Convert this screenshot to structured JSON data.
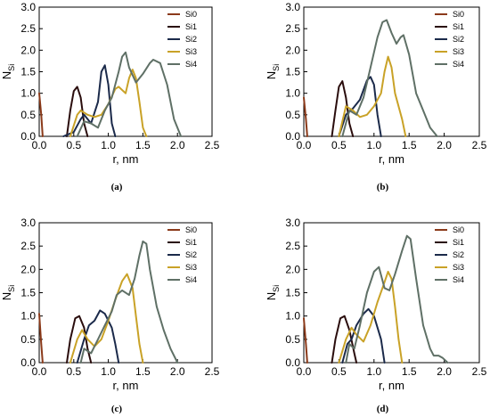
{
  "chart_data": [
    {
      "type": "line",
      "panel": "a",
      "caption": "(a)",
      "xlabel": "r, nm",
      "ylabel_main": "N",
      "ylabel_sub": "Si",
      "xlim": [
        0,
        2.5
      ],
      "ylim": [
        0,
        3.0
      ],
      "xticks": [
        "0.0",
        "0.5",
        "1.0",
        "1.5",
        "2.0",
        "2.5"
      ],
      "yticks": [
        "0.0",
        "0.5",
        "1.0",
        "1.5",
        "2.0",
        "2.5",
        "3.0"
      ],
      "legend_position": "top-right",
      "series": [
        {
          "name": "Si0",
          "color": "#8b3a1a",
          "points": [
            [
              0.0,
              1.0
            ],
            [
              0.03,
              0.5
            ],
            [
              0.05,
              0.0
            ]
          ]
        },
        {
          "name": "Si1",
          "color": "#2a0d0d",
          "points": [
            [
              0.4,
              0.0
            ],
            [
              0.45,
              0.6
            ],
            [
              0.5,
              1.05
            ],
            [
              0.55,
              1.15
            ],
            [
              0.6,
              0.9
            ],
            [
              0.65,
              0.3
            ],
            [
              0.7,
              0.0
            ]
          ]
        },
        {
          "name": "Si2",
          "color": "#1b2a4a",
          "points": [
            [
              0.35,
              0.0
            ],
            [
              0.5,
              0.1
            ],
            [
              0.6,
              0.4
            ],
            [
              0.65,
              0.5
            ],
            [
              0.75,
              0.3
            ],
            [
              0.85,
              0.8
            ],
            [
              0.9,
              1.5
            ],
            [
              0.95,
              1.65
            ],
            [
              1.0,
              1.2
            ],
            [
              1.05,
              0.3
            ],
            [
              1.1,
              0.0
            ]
          ]
        },
        {
          "name": "Si3",
          "color": "#c9a227",
          "points": [
            [
              0.45,
              0.0
            ],
            [
              0.55,
              0.5
            ],
            [
              0.6,
              0.6
            ],
            [
              0.7,
              0.5
            ],
            [
              0.8,
              0.45
            ],
            [
              0.9,
              0.5
            ],
            [
              1.0,
              0.75
            ],
            [
              1.1,
              1.1
            ],
            [
              1.15,
              1.15
            ],
            [
              1.25,
              1.0
            ],
            [
              1.3,
              1.35
            ],
            [
              1.35,
              1.55
            ],
            [
              1.4,
              1.35
            ],
            [
              1.45,
              0.8
            ],
            [
              1.5,
              0.2
            ],
            [
              1.55,
              0.0
            ]
          ]
        },
        {
          "name": "Si4",
          "color": "#5f7066",
          "points": [
            [
              0.55,
              0.0
            ],
            [
              0.65,
              0.35
            ],
            [
              0.75,
              0.3
            ],
            [
              0.85,
              0.2
            ],
            [
              0.95,
              0.6
            ],
            [
              1.05,
              0.9
            ],
            [
              1.15,
              1.5
            ],
            [
              1.2,
              1.85
            ],
            [
              1.25,
              1.95
            ],
            [
              1.3,
              1.6
            ],
            [
              1.4,
              1.25
            ],
            [
              1.5,
              1.45
            ],
            [
              1.6,
              1.7
            ],
            [
              1.65,
              1.78
            ],
            [
              1.75,
              1.7
            ],
            [
              1.85,
              1.2
            ],
            [
              1.95,
              0.4
            ],
            [
              2.05,
              0.0
            ]
          ]
        }
      ]
    },
    {
      "type": "line",
      "panel": "b",
      "caption": "(b)",
      "xlabel": "r, nm",
      "ylabel_main": "N",
      "ylabel_sub": "Si",
      "xlim": [
        0,
        2.5
      ],
      "ylim": [
        0,
        3.0
      ],
      "xticks": [
        "0.0",
        "0.5",
        "1.0",
        "1.5",
        "2.0",
        "2.5"
      ],
      "yticks": [
        "0.0",
        "0.5",
        "1.0",
        "1.5",
        "2.0",
        "2.5",
        "3.0"
      ],
      "legend_position": "top-right",
      "series": [
        {
          "name": "Si0",
          "color": "#8b3a1a",
          "points": [
            [
              0.0,
              0.9
            ],
            [
              0.03,
              0.4
            ],
            [
              0.05,
              0.0
            ]
          ]
        },
        {
          "name": "Si1",
          "color": "#2a0d0d",
          "points": [
            [
              0.4,
              0.0
            ],
            [
              0.45,
              0.6
            ],
            [
              0.5,
              1.15
            ],
            [
              0.55,
              1.28
            ],
            [
              0.6,
              0.9
            ],
            [
              0.65,
              0.3
            ],
            [
              0.7,
              0.0
            ]
          ]
        },
        {
          "name": "Si2",
          "color": "#1b2a4a",
          "points": [
            [
              0.5,
              0.0
            ],
            [
              0.6,
              0.5
            ],
            [
              0.7,
              0.65
            ],
            [
              0.8,
              0.85
            ],
            [
              0.9,
              1.3
            ],
            [
              0.95,
              1.38
            ],
            [
              1.0,
              1.2
            ],
            [
              1.05,
              0.5
            ],
            [
              1.1,
              0.0
            ]
          ]
        },
        {
          "name": "Si3",
          "color": "#c9a227",
          "points": [
            [
              0.5,
              0.0
            ],
            [
              0.6,
              0.7
            ],
            [
              0.7,
              0.6
            ],
            [
              0.8,
              0.45
            ],
            [
              0.9,
              0.5
            ],
            [
              1.0,
              0.7
            ],
            [
              1.1,
              1.0
            ],
            [
              1.15,
              1.5
            ],
            [
              1.2,
              1.85
            ],
            [
              1.25,
              1.6
            ],
            [
              1.3,
              1.0
            ],
            [
              1.4,
              0.4
            ],
            [
              1.45,
              0.0
            ]
          ]
        },
        {
          "name": "Si4",
          "color": "#5f7066",
          "points": [
            [
              0.55,
              0.0
            ],
            [
              0.65,
              0.6
            ],
            [
              0.75,
              0.5
            ],
            [
              0.85,
              0.9
            ],
            [
              0.95,
              1.6
            ],
            [
              1.05,
              2.3
            ],
            [
              1.12,
              2.65
            ],
            [
              1.18,
              2.7
            ],
            [
              1.25,
              2.4
            ],
            [
              1.32,
              2.15
            ],
            [
              1.38,
              2.3
            ],
            [
              1.42,
              2.35
            ],
            [
              1.5,
              1.9
            ],
            [
              1.6,
              1.0
            ],
            [
              1.7,
              0.6
            ],
            [
              1.8,
              0.2
            ],
            [
              1.9,
              0.0
            ]
          ]
        }
      ]
    },
    {
      "type": "line",
      "panel": "c",
      "caption": "(c)",
      "xlabel": "r, nm",
      "ylabel_main": "N",
      "ylabel_sub": "Si",
      "xlim": [
        0,
        2.5
      ],
      "ylim": [
        0,
        3.0
      ],
      "xticks": [
        "0.0",
        "0.5",
        "1.0",
        "1.5",
        "2.0",
        "2.5"
      ],
      "yticks": [
        "0.0",
        "0.5",
        "1.0",
        "1.5",
        "2.0",
        "2.5",
        "3.0"
      ],
      "legend_position": "top-right",
      "series": [
        {
          "name": "Si0",
          "color": "#8b3a1a",
          "points": [
            [
              0.0,
              1.05
            ],
            [
              0.03,
              0.4
            ],
            [
              0.05,
              0.0
            ]
          ]
        },
        {
          "name": "Si1",
          "color": "#2a0d0d",
          "points": [
            [
              0.4,
              0.0
            ],
            [
              0.45,
              0.5
            ],
            [
              0.52,
              0.95
            ],
            [
              0.58,
              1.0
            ],
            [
              0.65,
              0.75
            ],
            [
              0.7,
              0.3
            ],
            [
              0.75,
              0.0
            ]
          ]
        },
        {
          "name": "Si2",
          "color": "#1b2a4a",
          "points": [
            [
              0.55,
              0.0
            ],
            [
              0.65,
              0.5
            ],
            [
              0.72,
              0.8
            ],
            [
              0.8,
              0.9
            ],
            [
              0.88,
              1.12
            ],
            [
              0.95,
              1.05
            ],
            [
              1.05,
              0.75
            ],
            [
              1.1,
              0.4
            ],
            [
              1.15,
              0.0
            ]
          ]
        },
        {
          "name": "Si3",
          "color": "#c9a227",
          "points": [
            [
              0.45,
              0.0
            ],
            [
              0.55,
              0.5
            ],
            [
              0.62,
              0.7
            ],
            [
              0.7,
              0.5
            ],
            [
              0.8,
              0.35
            ],
            [
              0.9,
              0.5
            ],
            [
              1.0,
              0.9
            ],
            [
              1.1,
              1.35
            ],
            [
              1.2,
              1.75
            ],
            [
              1.27,
              1.9
            ],
            [
              1.35,
              1.6
            ],
            [
              1.4,
              1.0
            ],
            [
              1.45,
              0.4
            ],
            [
              1.5,
              0.0
            ]
          ]
        },
        {
          "name": "Si4",
          "color": "#5f7066",
          "points": [
            [
              0.6,
              0.0
            ],
            [
              0.65,
              0.3
            ],
            [
              0.75,
              0.2
            ],
            [
              0.85,
              0.5
            ],
            [
              0.95,
              0.8
            ],
            [
              1.05,
              1.1
            ],
            [
              1.12,
              1.45
            ],
            [
              1.2,
              1.55
            ],
            [
              1.3,
              1.45
            ],
            [
              1.38,
              1.8
            ],
            [
              1.45,
              2.3
            ],
            [
              1.5,
              2.6
            ],
            [
              1.55,
              2.55
            ],
            [
              1.6,
              2.0
            ],
            [
              1.7,
              1.2
            ],
            [
              1.8,
              0.7
            ],
            [
              1.9,
              0.3
            ],
            [
              2.0,
              0.0
            ]
          ]
        }
      ]
    },
    {
      "type": "line",
      "panel": "d",
      "caption": "(d)",
      "xlabel": "r, nm",
      "ylabel_main": "N",
      "ylabel_sub": "Si",
      "xlim": [
        0,
        2.5
      ],
      "ylim": [
        0,
        3.0
      ],
      "xticks": [
        "0.0",
        "0.5",
        "1.0",
        "1.5",
        "2.0",
        "2.5"
      ],
      "yticks": [
        "0.0",
        "0.5",
        "1.0",
        "1.5",
        "2.0",
        "2.5",
        "3.0"
      ],
      "legend_position": "top-right",
      "series": [
        {
          "name": "Si0",
          "color": "#8b3a1a",
          "points": [
            [
              0.0,
              0.95
            ],
            [
              0.03,
              0.4
            ],
            [
              0.05,
              0.0
            ]
          ]
        },
        {
          "name": "Si1",
          "color": "#2a0d0d",
          "points": [
            [
              0.4,
              0.0
            ],
            [
              0.45,
              0.5
            ],
            [
              0.52,
              0.95
            ],
            [
              0.58,
              1.0
            ],
            [
              0.65,
              0.7
            ],
            [
              0.72,
              0.2
            ],
            [
              0.75,
              0.0
            ]
          ]
        },
        {
          "name": "Si2",
          "color": "#1b2a4a",
          "points": [
            [
              0.55,
              0.0
            ],
            [
              0.62,
              0.4
            ],
            [
              0.68,
              0.5
            ],
            [
              0.75,
              0.8
            ],
            [
              0.85,
              1.05
            ],
            [
              0.92,
              1.15
            ],
            [
              1.0,
              1.0
            ],
            [
              1.1,
              0.5
            ],
            [
              1.15,
              0.0
            ]
          ]
        },
        {
          "name": "Si3",
          "color": "#c9a227",
          "points": [
            [
              0.5,
              0.0
            ],
            [
              0.6,
              0.5
            ],
            [
              0.68,
              0.75
            ],
            [
              0.75,
              0.6
            ],
            [
              0.85,
              0.45
            ],
            [
              0.95,
              0.8
            ],
            [
              1.05,
              1.3
            ],
            [
              1.12,
              1.6
            ],
            [
              1.2,
              1.95
            ],
            [
              1.25,
              1.8
            ],
            [
              1.3,
              1.2
            ],
            [
              1.35,
              0.5
            ],
            [
              1.4,
              0.0
            ]
          ]
        },
        {
          "name": "Si4",
          "color": "#5f7066",
          "points": [
            [
              0.6,
              0.0
            ],
            [
              0.65,
              0.4
            ],
            [
              0.72,
              0.3
            ],
            [
              0.8,
              0.8
            ],
            [
              0.9,
              1.5
            ],
            [
              1.0,
              1.95
            ],
            [
              1.07,
              2.05
            ],
            [
              1.15,
              1.6
            ],
            [
              1.22,
              1.55
            ],
            [
              1.3,
              1.9
            ],
            [
              1.4,
              2.4
            ],
            [
              1.47,
              2.72
            ],
            [
              1.52,
              2.65
            ],
            [
              1.6,
              1.8
            ],
            [
              1.7,
              0.8
            ],
            [
              1.8,
              0.3
            ],
            [
              1.85,
              0.15
            ],
            [
              1.92,
              0.15
            ],
            [
              1.98,
              0.1
            ],
            [
              2.05,
              0.0
            ]
          ]
        }
      ]
    }
  ]
}
